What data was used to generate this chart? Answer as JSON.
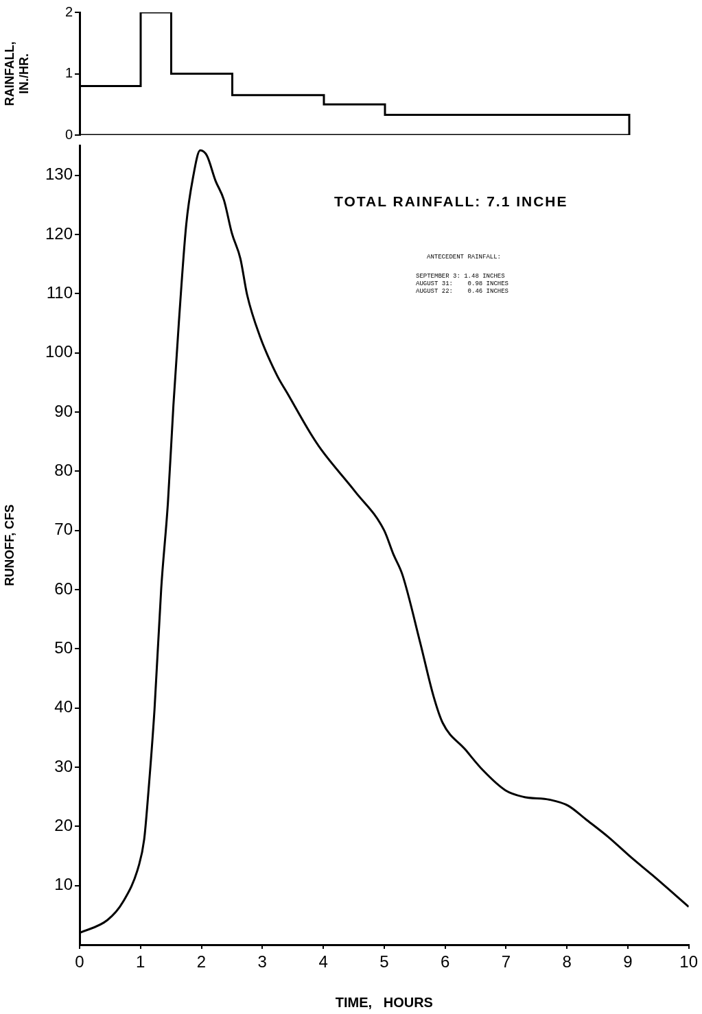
{
  "chart_data": [
    {
      "type": "histogram",
      "ylabel": "RAINFALL,\nIN./HR.",
      "bins": [
        0,
        1,
        1.5,
        2.5,
        4,
        5,
        9
      ],
      "values": [
        0.8,
        2,
        1,
        0.65,
        0.5,
        0.33
      ],
      "color": "#000000",
      "xlim": [
        0,
        10
      ],
      "ylim": [
        0,
        2
      ],
      "yticks": [
        0,
        1,
        2
      ],
      "tick_labels": "y"
    },
    {
      "type": "line",
      "xlabel": "TIME,   HOURS",
      "ylabel": "RUNOFF, CFS",
      "xlim": [
        0,
        10
      ],
      "ylim": [
        0,
        135
      ],
      "xticks": [
        0,
        1,
        2,
        3,
        4,
        5,
        6,
        7,
        8,
        9,
        10
      ],
      "yticks": [
        10,
        20,
        30,
        40,
        50,
        60,
        70,
        80,
        90,
        100,
        110,
        120,
        130
      ],
      "marker": "none",
      "line_style": "solid",
      "annotations": [
        "TOTAL RAINFALL: 7.1 INCHE",
        "ANTECEDENT RAINFALL:",
        "SEPTEMBER 3: 1.48 INCHES",
        "AUGUST 31:    0.98 INCHES",
        "AUGUST 22:    0.46 INCHES"
      ],
      "series": [
        {
          "color": "#000000",
          "x": [
            0,
            0.46,
            0.71,
            0.97,
            1.06,
            1.12,
            1.23,
            1.34,
            1.45,
            1.54,
            1.63,
            1.75,
            1.86,
            1.98,
            2.09,
            2.23,
            2.37,
            2.5,
            2.64,
            2.75,
            2.96,
            3.24,
            3.42,
            3.79,
            3.97,
            4.52,
            5,
            5.15,
            5.3,
            5.59,
            5.81,
            5.96,
            6.33,
            6.62,
            6.99,
            7.28,
            7.72,
            8.02,
            8.31,
            8.68,
            9.05,
            9.41,
            10
          ],
          "values": [
            2,
            4.2,
            7.2,
            13.3,
            17.8,
            24.6,
            39.8,
            60.2,
            74.7,
            91.1,
            105.2,
            121.6,
            129.5,
            134.2,
            133.3,
            129.1,
            125.8,
            120.2,
            115.9,
            109.8,
            102.8,
            96.2,
            93,
            86.4,
            83.6,
            76.6,
            70,
            66,
            62.5,
            51.1,
            42,
            37.5,
            33,
            29.5,
            26.1,
            25,
            24.5,
            23.5,
            21.2,
            18.2,
            14.8,
            11.7,
            6.4
          ]
        }
      ]
    }
  ]
}
